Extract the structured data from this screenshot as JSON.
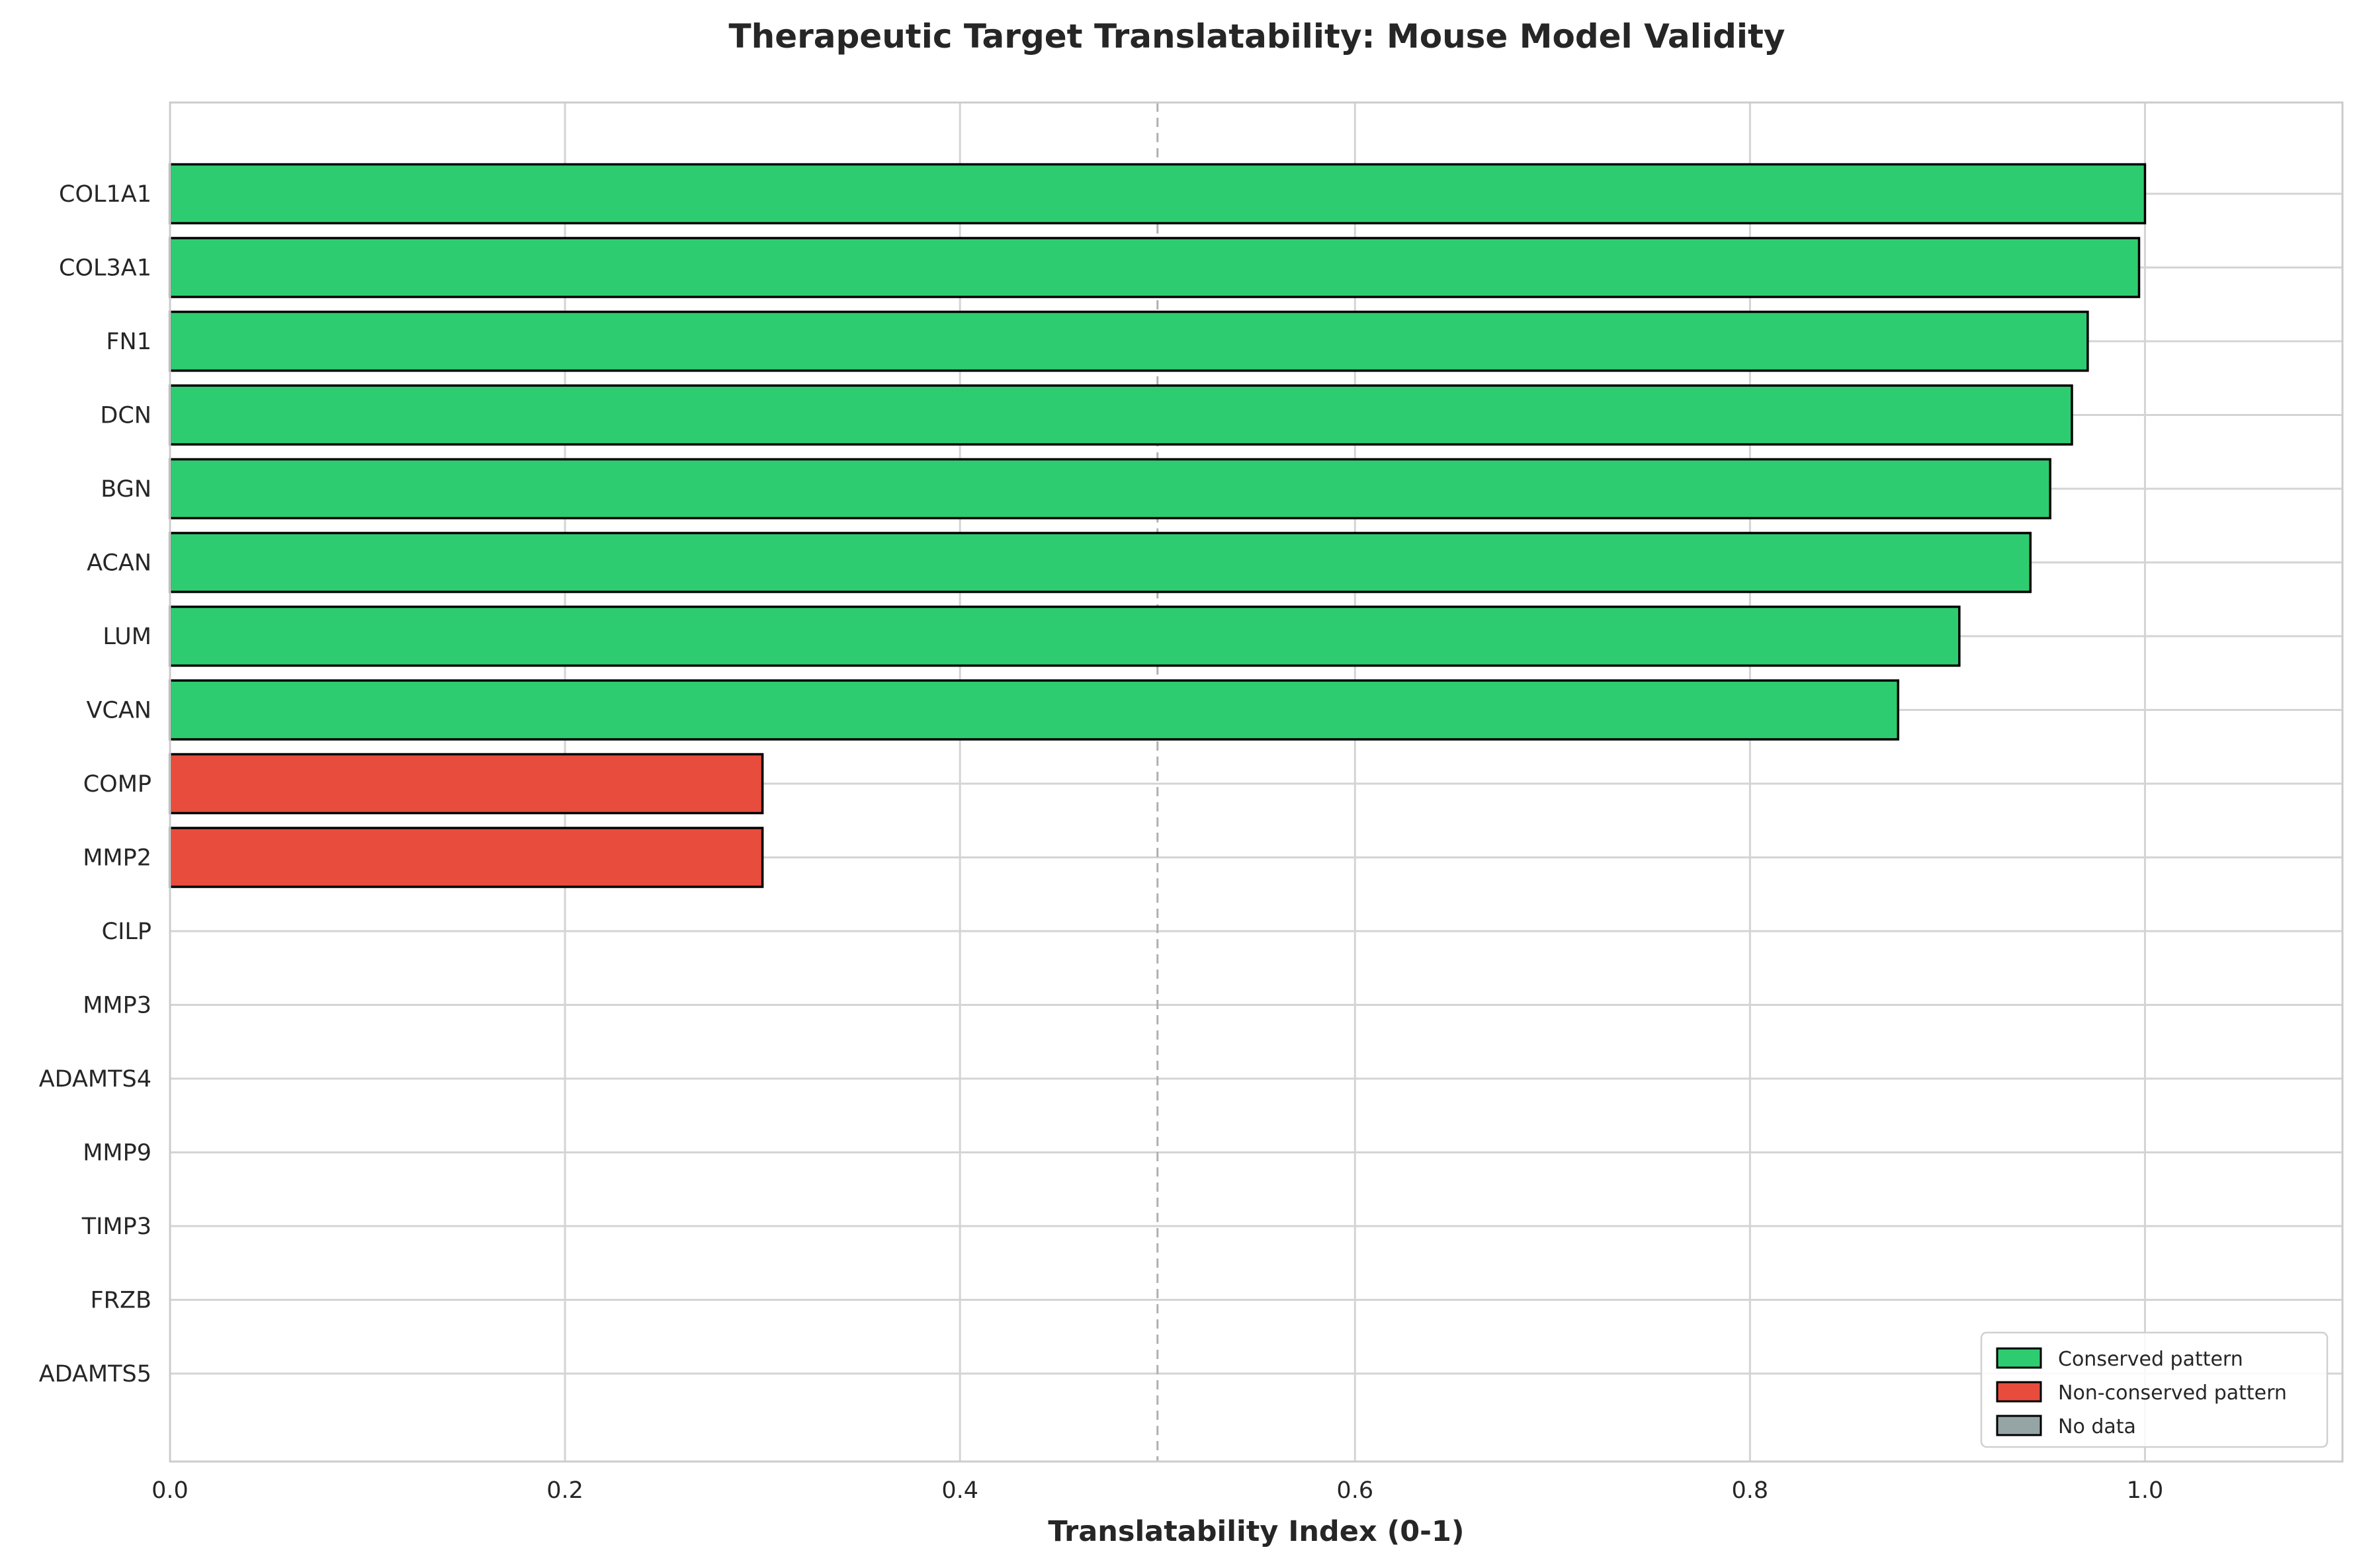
{
  "chart_data": {
    "type": "bar",
    "orientation": "horizontal",
    "title": "Therapeutic Target Translatability: Mouse Model Validity",
    "xlabel": "Translatability Index (0-1)",
    "ylabel": "",
    "xlim": [
      0,
      1.1
    ],
    "xticks": [
      0.0,
      0.2,
      0.4,
      0.6,
      0.8,
      1.0
    ],
    "xtick_labels": [
      "0.0",
      "0.2",
      "0.4",
      "0.6",
      "0.8",
      "1.0"
    ],
    "grid": true,
    "reference_line": {
      "x": 0.5,
      "style": "dashed"
    },
    "categories": [
      "COL1A1",
      "COL3A1",
      "FN1",
      "DCN",
      "BGN",
      "ACAN",
      "LUM",
      "VCAN",
      "COMP",
      "MMP2",
      "CILP",
      "MMP3",
      "ADAMTS4",
      "MMP9",
      "TIMP3",
      "FRZB",
      "ADAMTS5"
    ],
    "values": [
      1.0,
      0.997,
      0.971,
      0.963,
      0.952,
      0.942,
      0.906,
      0.875,
      0.3,
      0.3,
      null,
      null,
      null,
      null,
      null,
      null,
      null
    ],
    "status": [
      "conserved",
      "conserved",
      "conserved",
      "conserved",
      "conserved",
      "conserved",
      "conserved",
      "conserved",
      "non-conserved",
      "non-conserved",
      "no-data",
      "no-data",
      "no-data",
      "no-data",
      "no-data",
      "no-data",
      "no-data"
    ],
    "colors": {
      "conserved": "#2ecc71",
      "non-conserved": "#e74c3c",
      "no-data": "#95a5a6"
    },
    "legend": {
      "placement": "lower-right",
      "entries": [
        {
          "label": "Conserved pattern",
          "key": "conserved"
        },
        {
          "label": "Non-conserved pattern",
          "key": "non-conserved"
        },
        {
          "label": "No data",
          "key": "no-data"
        }
      ]
    }
  }
}
